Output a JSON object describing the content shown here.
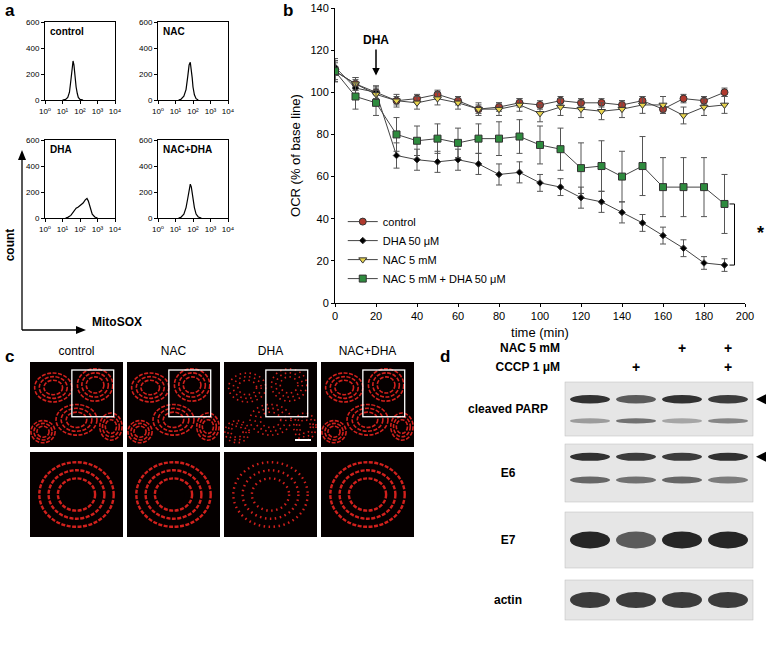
{
  "chart_data": [
    {
      "type": "line",
      "title": "control",
      "log": "x",
      "grid": false,
      "color": "#000000",
      "x": [
        10,
        15,
        20,
        25,
        30,
        35,
        40,
        45,
        50,
        60,
        70,
        80,
        100,
        150
      ],
      "values": [
        0,
        5,
        20,
        60,
        150,
        250,
        300,
        270,
        200,
        100,
        50,
        20,
        5,
        0
      ],
      "xlim": [
        1,
        10000
      ],
      "xticks": [
        {
          "value": 1,
          "label": "10⁰"
        },
        {
          "value": 10,
          "label": "10¹"
        },
        {
          "value": 100,
          "label": "10²"
        },
        {
          "value": 1000,
          "label": "10³"
        },
        {
          "value": 10000,
          "label": "10⁴"
        }
      ],
      "ylim": [
        0,
        600
      ],
      "yticks": [
        0,
        200,
        400,
        600
      ]
    },
    {
      "type": "line",
      "title": "NAC",
      "log": "x",
      "grid": false,
      "color": "#000000",
      "x": [
        15,
        20,
        30,
        40,
        50,
        60,
        70,
        80,
        90,
        100,
        120,
        150,
        200
      ],
      "values": [
        0,
        5,
        30,
        80,
        180,
        270,
        290,
        240,
        170,
        100,
        40,
        10,
        0
      ],
      "xlim": [
        1,
        10000
      ],
      "xticks": [
        {
          "value": 1,
          "label": "10⁰"
        },
        {
          "value": 10,
          "label": "10¹"
        },
        {
          "value": 100,
          "label": "10²"
        },
        {
          "value": 1000,
          "label": "10³"
        },
        {
          "value": 10000,
          "label": "10⁴"
        }
      ],
      "ylim": [
        0,
        600
      ],
      "yticks": [
        0,
        200,
        400,
        600
      ]
    },
    {
      "type": "line",
      "title": "DHA",
      "log": "x",
      "grid": false,
      "color": "#000000",
      "x": [
        15,
        20,
        30,
        40,
        50,
        60,
        80,
        100,
        150,
        200,
        250,
        300,
        400,
        500,
        700,
        1000
      ],
      "values": [
        0,
        5,
        20,
        40,
        60,
        75,
        85,
        95,
        115,
        140,
        150,
        130,
        70,
        30,
        8,
        0
      ],
      "xlim": [
        1,
        10000
      ],
      "xticks": [
        {
          "value": 1,
          "label": "10⁰"
        },
        {
          "value": 10,
          "label": "10¹"
        },
        {
          "value": 100,
          "label": "10²"
        },
        {
          "value": 1000,
          "label": "10³"
        },
        {
          "value": 10000,
          "label": "10⁴"
        }
      ],
      "ylim": [
        0,
        600
      ],
      "yticks": [
        0,
        200,
        400,
        600
      ]
    },
    {
      "type": "line",
      "title": "NAC+DHA",
      "log": "x",
      "grid": false,
      "color": "#000000",
      "x": [
        15,
        20,
        30,
        40,
        50,
        60,
        70,
        80,
        100,
        120,
        150,
        200,
        300
      ],
      "values": [
        0,
        5,
        30,
        80,
        150,
        230,
        260,
        240,
        150,
        80,
        30,
        8,
        0
      ],
      "xlim": [
        1,
        10000
      ],
      "xticks": [
        {
          "value": 1,
          "label": "10⁰"
        },
        {
          "value": 10,
          "label": "10¹"
        },
        {
          "value": 100,
          "label": "10²"
        },
        {
          "value": 1000,
          "label": "10³"
        },
        {
          "value": 10000,
          "label": "10⁴"
        }
      ],
      "ylim": [
        0,
        600
      ],
      "yticks": [
        0,
        200,
        400,
        600
      ]
    },
    {
      "type": "line",
      "x_label": "time (min)",
      "y_label": "OCR (% of base line)",
      "grid": false,
      "legend": "lower left",
      "x": [
        0,
        10,
        20,
        30,
        40,
        50,
        60,
        70,
        80,
        90,
        100,
        110,
        120,
        130,
        140,
        150,
        160,
        170,
        180,
        190
      ],
      "xlim": [
        0,
        200
      ],
      "xticks": [
        0,
        20,
        40,
        60,
        80,
        100,
        120,
        140,
        160,
        180,
        200
      ],
      "ylim": [
        0,
        140
      ],
      "yticks": [
        0,
        20,
        40,
        60,
        80,
        100,
        120,
        140
      ],
      "series": [
        {
          "name": "control",
          "color": "#b03a2e",
          "marker": "circle",
          "values": [
            110,
            104,
            100,
            96,
            97,
            99,
            96,
            92,
            93,
            95,
            94,
            96,
            95,
            95,
            94,
            96,
            92,
            97,
            96,
            100
          ],
          "errors": [
            5,
            3,
            3,
            2,
            2,
            2,
            2,
            2,
            2,
            2,
            2,
            2,
            2,
            2,
            2,
            2,
            2,
            2,
            2,
            2
          ]
        },
        {
          "name": "DHA 50 μM",
          "color": "#000000",
          "marker": "diamond",
          "values": [
            112,
            102,
            100,
            70,
            68,
            67,
            68,
            66,
            61,
            62,
            57,
            55,
            50,
            48,
            43,
            38,
            32,
            26,
            19,
            18
          ],
          "errors": [
            4,
            4,
            3,
            6,
            5,
            5,
            5,
            5,
            5,
            5,
            4,
            4,
            5,
            5,
            5,
            4,
            4,
            4,
            3,
            3
          ]
        },
        {
          "name": "NAC 5 mM",
          "color": "#e8d44d",
          "marker": "triangle-down",
          "values": [
            110,
            104,
            99,
            96,
            95,
            97,
            95,
            92,
            92,
            94,
            90,
            93,
            92,
            91,
            92,
            94,
            94,
            89,
            93,
            94
          ],
          "errors": [
            4,
            3,
            3,
            3,
            3,
            3,
            3,
            3,
            3,
            3,
            4,
            4,
            4,
            4,
            4,
            4,
            4,
            4,
            4,
            4
          ]
        },
        {
          "name": "NAC 5 mM + DHA 50 μM",
          "color": "#2e8b3e",
          "marker": "square",
          "values": [
            110,
            98,
            95,
            80,
            77,
            78,
            76,
            78,
            78,
            79,
            75,
            73,
            64,
            65,
            60,
            65,
            55,
            55,
            55,
            47
          ],
          "errors": [
            5,
            6,
            6,
            8,
            7,
            7,
            7,
            7,
            8,
            8,
            9,
            10,
            12,
            12,
            12,
            14,
            14,
            14,
            14,
            14
          ]
        }
      ],
      "annotations": [
        {
          "text": "DHA",
          "x": 20,
          "y": 108,
          "line_style": "arrow"
        },
        {
          "text": "*",
          "x": 200,
          "y": 33,
          "series": [
            "DHA 50 μM",
            "NAC 5 mM + DHA 50 μM"
          ]
        }
      ]
    }
  ],
  "figure": {
    "panel_labels": [
      "a",
      "b",
      "c",
      "d"
    ],
    "flow_axes": {
      "x_label": "MitoSOX",
      "y_label": "count"
    },
    "microscopy": {
      "labels": [
        "control",
        "NAC",
        "DHA",
        "NAC+DHA"
      ]
    },
    "blot": {
      "treatments": [
        {
          "label": "NAC 5 mM",
          "lanes": [
            null,
            null,
            "+",
            "+"
          ]
        },
        {
          "label": "CCCP 1 μM",
          "lanes": [
            null,
            "+",
            null,
            "+"
          ]
        }
      ],
      "rows": [
        {
          "label": "cleaved PARP",
          "arrow": true
        },
        {
          "label": "E6",
          "arrow": true
        },
        {
          "label": "E7",
          "arrow": false
        },
        {
          "label": "actin",
          "arrow": false
        }
      ]
    }
  }
}
